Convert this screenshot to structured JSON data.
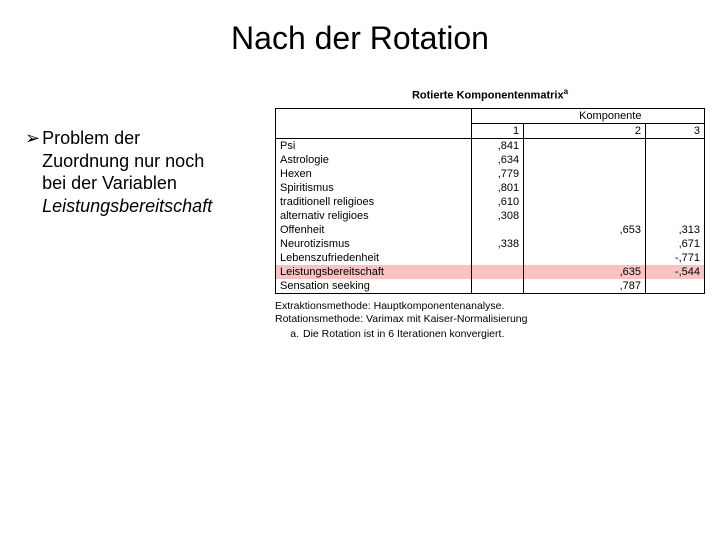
{
  "title": "Nach der Rotation",
  "bullet": {
    "symbol": "➢",
    "line1": "Problem der",
    "line2": "Zuordnung nur noch",
    "line3": "bei der Variablen",
    "line4_italic": "Leistungsbereitschaft"
  },
  "table": {
    "caption": "Rotierte Komponentenmatrix",
    "caption_sup": "a",
    "group_header": "Komponente",
    "col_headers": [
      "1",
      "2",
      "3"
    ],
    "rows": [
      {
        "label": "Psi",
        "v1": ",841",
        "v2": "",
        "v3": "",
        "hl": false
      },
      {
        "label": "Astrologie",
        "v1": ",634",
        "v2": "",
        "v3": "",
        "hl": false
      },
      {
        "label": "Hexen",
        "v1": ",779",
        "v2": "",
        "v3": "",
        "hl": false
      },
      {
        "label": "Spiritismus",
        "v1": ",801",
        "v2": "",
        "v3": "",
        "hl": false
      },
      {
        "label": "traditionell religioes",
        "v1": ",610",
        "v2": "",
        "v3": "",
        "hl": false
      },
      {
        "label": "alternativ religioes",
        "v1": ",308",
        "v2": "",
        "v3": "",
        "hl": false
      },
      {
        "label": "Offenheit",
        "v1": "",
        "v2": ",653",
        "v3": ",313",
        "hl": false
      },
      {
        "label": "Neurotizismus",
        "v1": ",338",
        "v2": "",
        "v3": ",671",
        "hl": false
      },
      {
        "label": "Lebenszufriedenheit",
        "v1": "",
        "v2": "",
        "v3": "-,771",
        "hl": false
      },
      {
        "label": "Leistungsbereitschaft",
        "v1": "",
        "v2": ",635",
        "v3": "-,544",
        "hl": true
      },
      {
        "label": "Sensation seeking",
        "v1": "",
        "v2": ",787",
        "v3": "",
        "hl": false
      }
    ],
    "footnote1": "Extraktionsmethode: Hauptkomponentenanalyse.",
    "footnote2": "Rotationsmethode: Varimax mit Kaiser-Normalisierung",
    "footnote_a_label": "a.",
    "footnote_a": "Die Rotation ist in 6 Iterationen konvergiert."
  },
  "colors": {
    "highlight": "#fbc2c2",
    "background": "#ffffff",
    "text": "#000000"
  }
}
